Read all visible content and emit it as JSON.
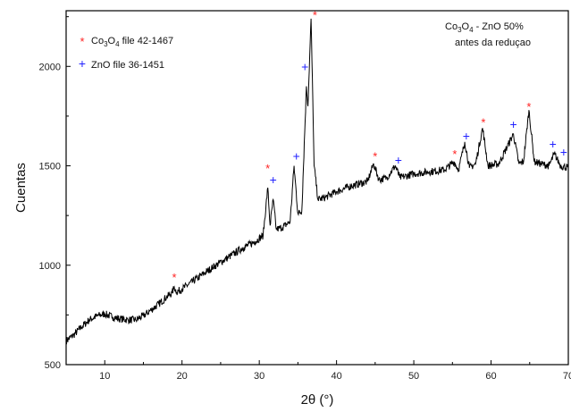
{
  "chart_data": {
    "type": "line",
    "xlabel": "2θ (°)",
    "ylabel": "Cuentas",
    "xlim": [
      5,
      70
    ],
    "ylim": [
      500,
      2280
    ],
    "x_ticks": [
      10,
      20,
      30,
      40,
      50,
      60,
      70
    ],
    "x_tick_labels": [
      "10",
      "20",
      "30",
      "40",
      "50",
      "60",
      "70"
    ],
    "y_ticks": [
      500,
      1000,
      1500,
      2000
    ],
    "y_tick_labels": [
      "500",
      "1000",
      "1500",
      "2000"
    ],
    "line_color": "#000000",
    "series": [
      {
        "values_xy": [
          [
            5,
            620
          ],
          [
            6,
            650
          ],
          [
            7,
            690
          ],
          [
            8,
            725
          ],
          [
            9,
            745
          ],
          [
            10,
            755
          ],
          [
            11,
            740
          ],
          [
            12,
            730
          ],
          [
            13,
            725
          ],
          [
            14,
            725
          ],
          [
            15,
            745
          ],
          [
            16,
            775
          ],
          [
            17,
            805
          ],
          [
            18,
            840
          ],
          [
            18.7,
            860
          ],
          [
            19,
            890
          ],
          [
            19.3,
            865
          ],
          [
            20,
            880
          ],
          [
            22,
            935
          ],
          [
            24,
            990
          ],
          [
            26,
            1040
          ],
          [
            28,
            1090
          ],
          [
            29.5,
            1120
          ],
          [
            30.5,
            1150
          ],
          [
            31.1,
            1390
          ],
          [
            31.4,
            1200
          ],
          [
            31.8,
            1330
          ],
          [
            32.2,
            1180
          ],
          [
            33,
            1190
          ],
          [
            34,
            1220
          ],
          [
            34.5,
            1500
          ],
          [
            35,
            1260
          ],
          [
            35.5,
            1270
          ],
          [
            36.1,
            1900
          ],
          [
            36.3,
            1800
          ],
          [
            36.7,
            2240
          ],
          [
            37.1,
            1500
          ],
          [
            37.6,
            1330
          ],
          [
            38.5,
            1340
          ],
          [
            40,
            1370
          ],
          [
            42,
            1400
          ],
          [
            44,
            1420
          ],
          [
            44.8,
            1510
          ],
          [
            45.5,
            1430
          ],
          [
            46.5,
            1440
          ],
          [
            47.6,
            1500
          ],
          [
            48.2,
            1440
          ],
          [
            50,
            1460
          ],
          [
            52,
            1470
          ],
          [
            54,
            1480
          ],
          [
            55.2,
            1520
          ],
          [
            55.8,
            1480
          ],
          [
            56.6,
            1620
          ],
          [
            57.2,
            1490
          ],
          [
            58,
            1510
          ],
          [
            58.9,
            1690
          ],
          [
            59.6,
            1500
          ],
          [
            61,
            1510
          ],
          [
            62.9,
            1660
          ],
          [
            63.6,
            1510
          ],
          [
            64.2,
            1520
          ],
          [
            64.9,
            1780
          ],
          [
            65.6,
            1520
          ],
          [
            66.5,
            1510
          ],
          [
            67.5,
            1500
          ],
          [
            68.2,
            1560
          ],
          [
            69,
            1500
          ],
          [
            70,
            1490
          ]
        ]
      }
    ],
    "legend": {
      "placement": "top-left",
      "entries": [
        {
          "marker": "*",
          "color": "#ff2222",
          "prefix": "Co",
          "sub1": "3",
          "mid": "O",
          "sub2": "4",
          "suffix": " file 42-1467"
        },
        {
          "marker": "+",
          "color": "#2222ff",
          "prefix": "ZnO file 36-1451",
          "sub1": "",
          "mid": "",
          "sub2": "",
          "suffix": ""
        }
      ]
    },
    "annotation": {
      "placement": "top-right",
      "line1": {
        "prefix": "Co",
        "sub1": "3",
        "mid": "O",
        "sub2": "4",
        "suffix": " - ZnO  50%"
      },
      "line2": "antes da reduçao"
    },
    "markers": {
      "co3o4": {
        "symbol": "*",
        "color": "#ff2222",
        "points": [
          [
            19,
            940
          ],
          [
            31.1,
            1490
          ],
          [
            37.2,
            2260
          ],
          [
            45,
            1550
          ],
          [
            55.3,
            1560
          ],
          [
            59,
            1720
          ],
          [
            64.9,
            1800
          ]
        ]
      },
      "zno": {
        "symbol": "+",
        "color": "#2222ff",
        "points": [
          [
            31.8,
            1430
          ],
          [
            34.8,
            1550
          ],
          [
            35.9,
            2000
          ],
          [
            48,
            1530
          ],
          [
            56.8,
            1650
          ],
          [
            62.9,
            1710
          ],
          [
            68,
            1610
          ],
          [
            69.4,
            1570
          ]
        ]
      }
    }
  }
}
